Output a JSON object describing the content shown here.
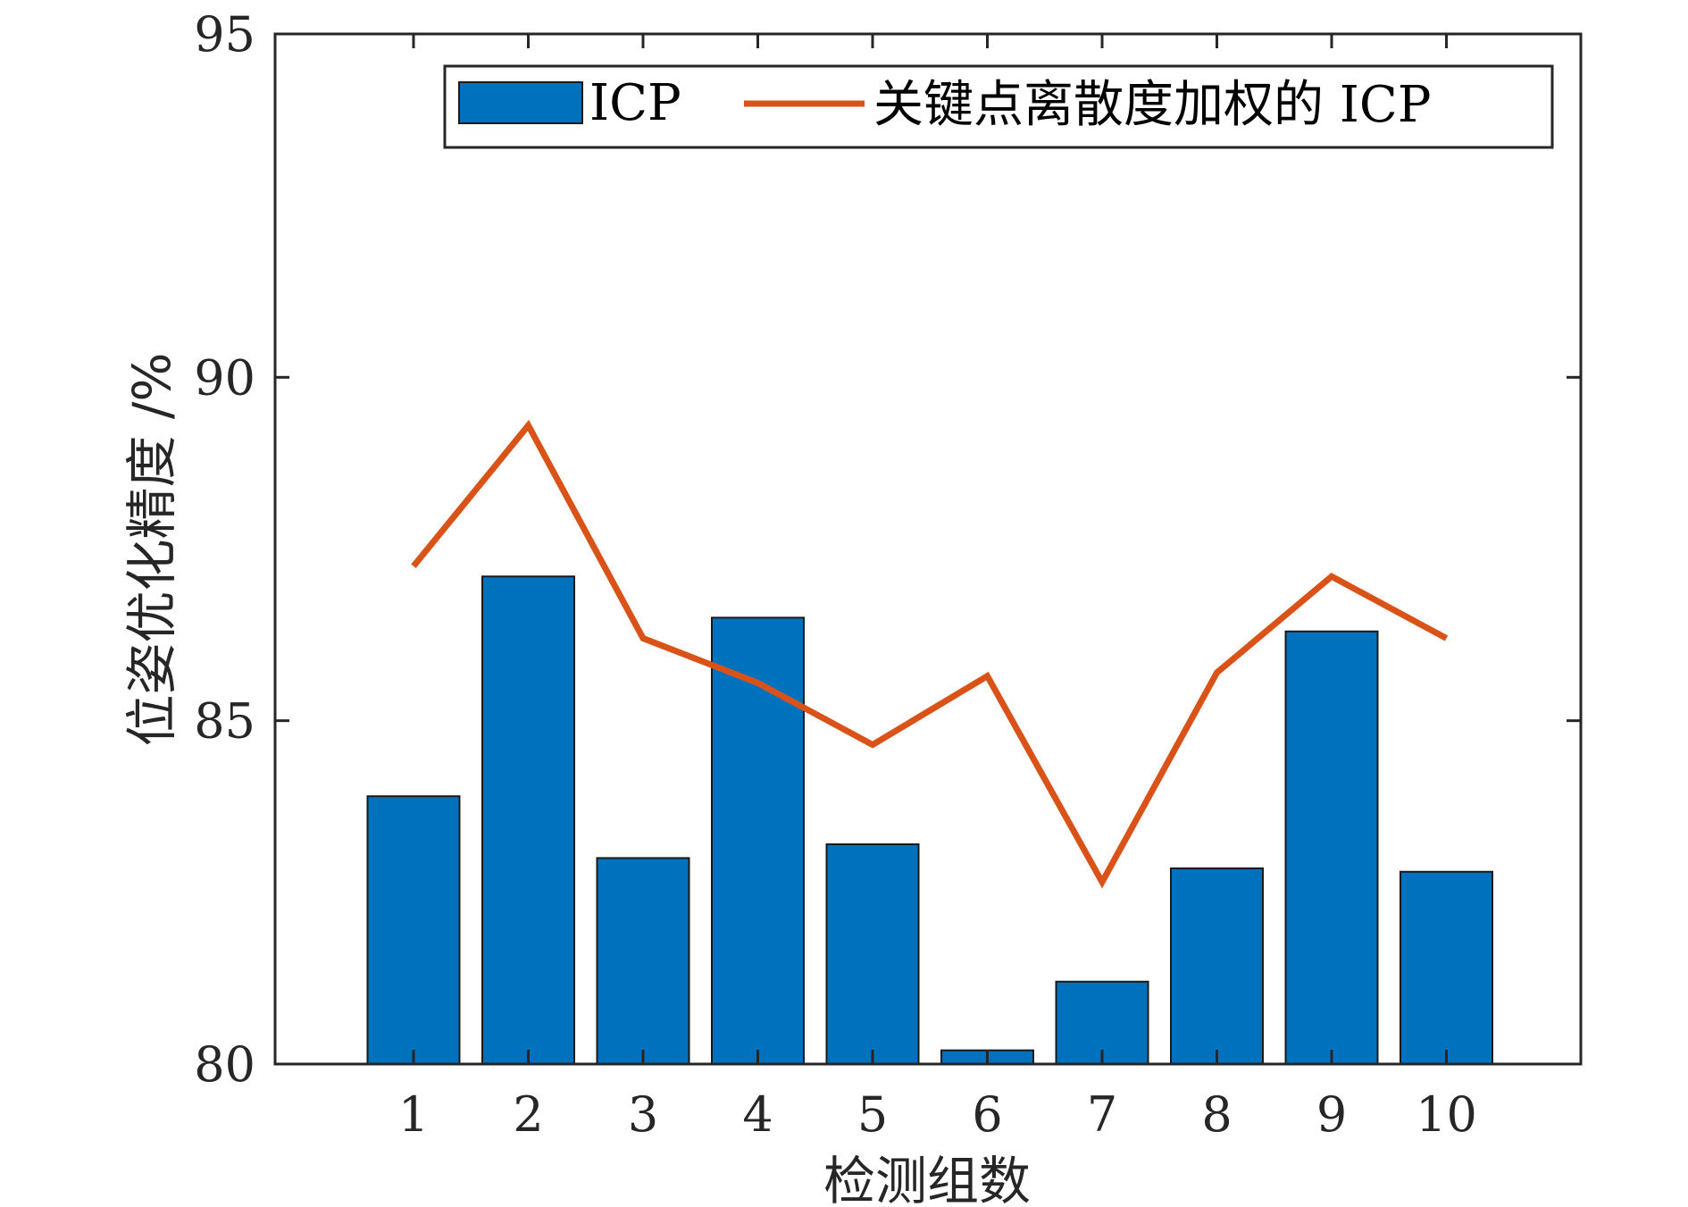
{
  "chart_data": {
    "type": "bar",
    "xlabel": "检测组数",
    "ylabel": "位姿优化精度 /%",
    "ylim": [
      80,
      95
    ],
    "yticks": [
      80,
      85,
      90,
      95
    ],
    "categories": [
      "1",
      "2",
      "3",
      "4",
      "5",
      "6",
      "7",
      "8",
      "9",
      "10"
    ],
    "series": [
      {
        "name": "ICP",
        "type": "bar",
        "color": "#0072BD",
        "values": [
          83.9,
          87.1,
          83.0,
          86.5,
          83.2,
          80.2,
          81.2,
          82.85,
          86.3,
          82.8
        ]
      },
      {
        "name": "关键点离散度加权的 ICP",
        "type": "line",
        "color": "#D95319",
        "values": [
          87.25,
          89.3,
          86.2,
          85.55,
          84.65,
          85.65,
          82.65,
          85.7,
          87.1,
          86.2
        ]
      }
    ],
    "legend": {
      "position": "top-right",
      "orientation": "horizontal"
    },
    "grid": false
  }
}
